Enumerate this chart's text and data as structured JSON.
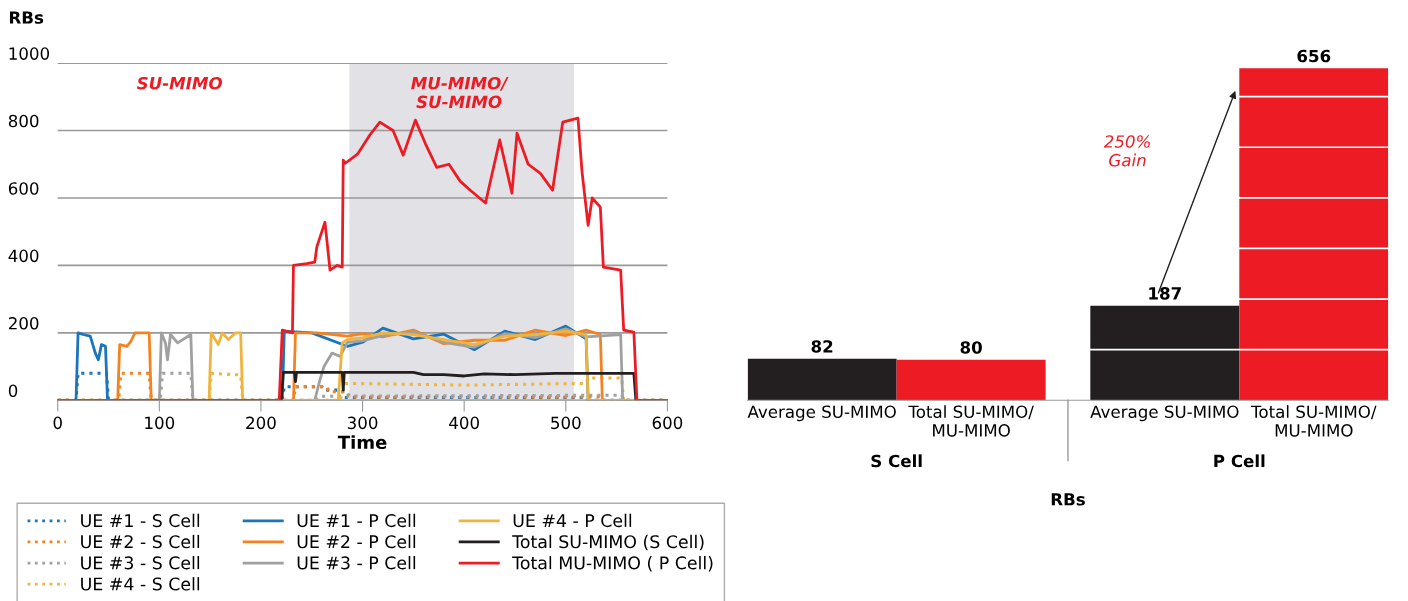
{
  "chart_data": [
    {
      "type": "line",
      "ylabel": "RBs",
      "xlabel": "Time",
      "xlim": [
        0,
        600
      ],
      "xticks": [
        0,
        100,
        200,
        300,
        400,
        500,
        600
      ],
      "ylim": [
        0,
        1000
      ],
      "yticks": [
        0,
        200,
        400,
        600,
        800,
        1000
      ],
      "grid": "y",
      "legend": "bottom",
      "marker": "none",
      "annotations": [
        "SU-MIMO",
        "MU-MIMO/\nSU-MIMO"
      ],
      "bands": [
        {
          "axis": "x",
          "from": 287,
          "to": 508,
          "color": "#e1e1e6"
        }
      ],
      "series": [
        {
          "name": "UE #1 - S Cell",
          "color": "#1a75bc",
          "line_style": "dotted",
          "x": [
            0,
            18,
            20,
            48,
            50,
            221,
            223,
            260,
            262,
            280,
            282,
            520,
            522,
            600
          ],
          "values": [
            0,
            0,
            80,
            80,
            0,
            0,
            40,
            40,
            30,
            30,
            8,
            8,
            0,
            0
          ]
        },
        {
          "name": "UE #2 - S Cell",
          "color": "#f58220",
          "line_style": "dotted",
          "x": [
            0,
            60,
            62,
            90,
            92,
            232,
            234,
            265,
            267,
            285,
            287,
            535,
            537,
            600
          ],
          "values": [
            0,
            0,
            80,
            80,
            0,
            0,
            40,
            40,
            25,
            25,
            10,
            10,
            0,
            0
          ]
        },
        {
          "name": "UE #3 - S Cell",
          "color": "#a0a0a0",
          "line_style": "dotted",
          "x": [
            0,
            101,
            103,
            131,
            133,
            253,
            258,
            555,
            557,
            600
          ],
          "values": [
            0,
            0,
            80,
            80,
            0,
            0,
            12,
            15,
            0,
            0
          ]
        },
        {
          "name": "UE #4 - S Cell",
          "color": "#f0b43c",
          "line_style": "dotted",
          "x": [
            0,
            149,
            151,
            180,
            182,
            278,
            283,
            400,
            520,
            522,
            555,
            557,
            600
          ],
          "values": [
            0,
            0,
            80,
            75,
            0,
            0,
            50,
            45,
            50,
            66,
            66,
            0,
            0
          ]
        },
        {
          "name": "UE #1 - P Cell",
          "color": "#1a75bc",
          "x": [
            0,
            18,
            20,
            25,
            32,
            37,
            40,
            43,
            47,
            49,
            221,
            223,
            250,
            285,
            300,
            320,
            350,
            380,
            410,
            440,
            470,
            500,
            520,
            522,
            600
          ],
          "values": [
            0,
            0,
            200,
            195,
            190,
            140,
            120,
            165,
            160,
            0,
            0,
            205,
            200,
            160,
            172,
            214,
            182,
            196,
            150,
            205,
            180,
            220,
            182,
            0,
            0
          ]
        },
        {
          "name": "UE #2 - P Cell",
          "color": "#f58220",
          "x": [
            0,
            59,
            61,
            68,
            72,
            76,
            90,
            92,
            232,
            234,
            255,
            285,
            300,
            320,
            350,
            380,
            410,
            440,
            470,
            500,
            520,
            534,
            536,
            600
          ],
          "values": [
            0,
            0,
            165,
            160,
            175,
            200,
            200,
            0,
            0,
            200,
            200,
            190,
            198,
            188,
            208,
            168,
            178,
            178,
            208,
            192,
            208,
            195,
            0,
            0
          ]
        },
        {
          "name": "UE #3 - P Cell",
          "color": "#a0a0a0",
          "x": [
            0,
            100,
            102,
            106,
            108,
            111,
            118,
            131,
            133,
            253,
            258,
            262,
            270,
            278,
            285,
            300,
            320,
            350,
            380,
            410,
            440,
            470,
            500,
            520,
            554,
            556,
            600
          ],
          "values": [
            0,
            0,
            200,
            170,
            120,
            195,
            170,
            195,
            0,
            0,
            60,
            100,
            140,
            130,
            172,
            176,
            192,
            203,
            172,
            157,
            198,
            186,
            212,
            188,
            195,
            0,
            0
          ]
        },
        {
          "name": "UE #4 - P Cell",
          "color": "#f0b43c",
          "x": [
            0,
            149,
            151,
            158,
            162,
            168,
            175,
            180,
            182,
            276,
            280,
            285,
            300,
            320,
            350,
            380,
            410,
            440,
            470,
            500,
            520,
            522,
            600
          ],
          "values": [
            0,
            0,
            200,
            165,
            200,
            180,
            200,
            200,
            0,
            0,
            170,
            180,
            185,
            200,
            195,
            180,
            165,
            190,
            195,
            205,
            195,
            0,
            0
          ]
        },
        {
          "name": "Total SU-MIMO (S Cell)",
          "color": "#231f20",
          "x": [
            0,
            220,
            222,
            233,
            234,
            235,
            280,
            281,
            282,
            350,
            360,
            380,
            400,
            420,
            450,
            490,
            567,
            569,
            600
          ],
          "values": [
            0,
            0,
            83,
            83,
            55,
            83,
            83,
            30,
            83,
            83,
            76,
            76,
            72,
            78,
            76,
            80,
            80,
            0,
            0
          ]
        },
        {
          "name": "Total MU-MIMO ( P Cell)",
          "color": "#ed1c24",
          "x": [
            0,
            218,
            221,
            231,
            232,
            245,
            253,
            255,
            263,
            268,
            275,
            280,
            281,
            283,
            295,
            307,
            317,
            330,
            340,
            352,
            362,
            373,
            385,
            396,
            406,
            421,
            435,
            447,
            452,
            463,
            475,
            487,
            497,
            512,
            516,
            522,
            526,
            534,
            537,
            554,
            557,
            567,
            570,
            600
          ],
          "values": [
            0,
            0,
            208,
            200,
            400,
            405,
            410,
            455,
            528,
            386,
            400,
            395,
            712,
            703,
            730,
            786,
            825,
            800,
            727,
            831,
            760,
            691,
            700,
            650,
            623,
            585,
            772,
            614,
            792,
            700,
            673,
            623,
            825,
            837,
            677,
            519,
            600,
            573,
            395,
            386,
            208,
            202,
            0,
            0
          ]
        }
      ]
    },
    {
      "type": "bar",
      "xlabel": "RBs",
      "categories": [
        "Average SU-MIMO",
        "Total SU-MIMO/\nMU-MIMO",
        "Average SU-MIMO",
        "Total SU-MIMO/\nMU-MIMO"
      ],
      "values": [
        82,
        80,
        187,
        656
      ],
      "colors": [
        "#231f20",
        "#ed1c24",
        "#231f20",
        "#ed1c24"
      ],
      "data_labels": true,
      "yticks": [
        {
          "value": 100,
          "label": null
        },
        {
          "value": 200,
          "label": null
        },
        {
          "value": 300,
          "label": null
        },
        {
          "value": 400,
          "label": null
        },
        {
          "value": 500,
          "label": null
        },
        {
          "value": 600,
          "label": null
        }
      ],
      "grid": "y",
      "annotations": [
        "S Cell",
        "P Cell",
        "250%\nGain"
      ]
    }
  ]
}
